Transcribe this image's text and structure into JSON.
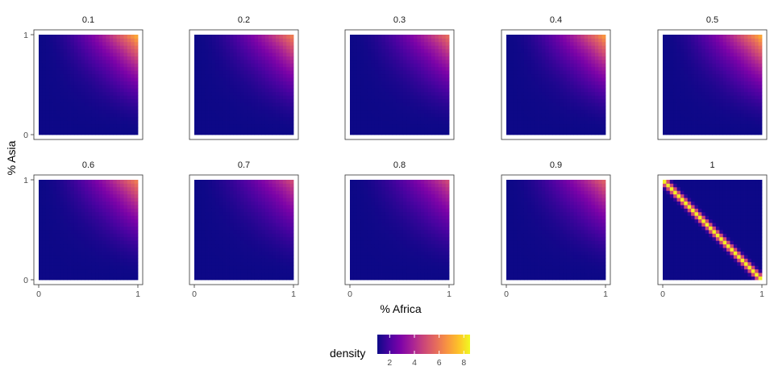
{
  "chart_data": {
    "type": "heatmap",
    "layout": "faceted 2 rows x 5 columns",
    "xlabel": "% Africa",
    "ylabel": "% Asia",
    "x_ticks": [
      "0",
      "1"
    ],
    "y_ticks": [
      "0",
      "1"
    ],
    "xlim": [
      0,
      1
    ],
    "ylim": [
      0,
      1
    ],
    "grid": false,
    "colorscale": "plasma",
    "legend": {
      "title": "density",
      "position": "bottom",
      "breaks": [
        "2",
        "4",
        "6",
        "8"
      ],
      "range": [
        1,
        8.5
      ]
    },
    "panels": [
      {
        "label": "0.1",
        "pattern": "corner",
        "max_density": 7.2
      },
      {
        "label": "0.2",
        "pattern": "corner",
        "max_density": 6.2
      },
      {
        "label": "0.3",
        "pattern": "corner",
        "max_density": 5.8
      },
      {
        "label": "0.4",
        "pattern": "corner",
        "max_density": 6.8
      },
      {
        "label": "0.5",
        "pattern": "corner",
        "max_density": 7.2
      },
      {
        "label": "0.6",
        "pattern": "corner",
        "max_density": 6.2
      },
      {
        "label": "0.7",
        "pattern": "corner",
        "max_density": 4.8
      },
      {
        "label": "0.8",
        "pattern": "corner",
        "max_density": 4.8
      },
      {
        "label": "0.9",
        "pattern": "corner",
        "max_density": 5.4
      },
      {
        "label": "1",
        "pattern": "anti-diagonal",
        "max_density": 8.3
      }
    ]
  }
}
